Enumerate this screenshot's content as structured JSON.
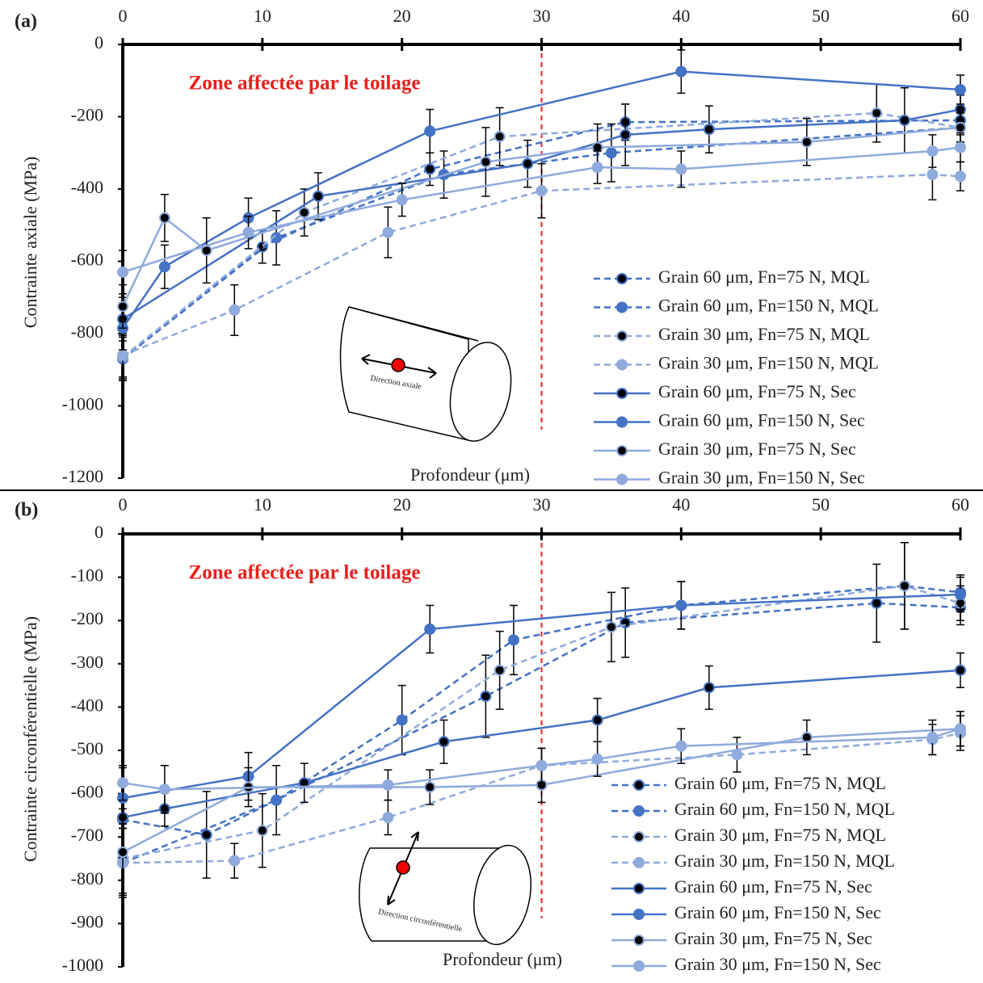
{
  "chart_data": [
    {
      "type": "line",
      "panel_label": "(a)",
      "annotation": "Zone affectée par le toilage",
      "annotation_color": "#e8201c",
      "zone_x": 30,
      "xlabel": "Profondeur (μm)",
      "ylabel": "Contrainte axiale (MPa)",
      "inset_label": "Direction axiale",
      "xlim": [
        0,
        60
      ],
      "xticks": [
        0,
        10,
        20,
        30,
        40,
        50,
        60
      ],
      "ylim": [
        -1200,
        0
      ],
      "yticks": [
        -1200,
        -1000,
        -800,
        -600,
        -400,
        -200,
        0
      ],
      "legend": "lower right",
      "series": [
        {
          "name": "Grain 60 μm, Fn=75 N, MQL",
          "color": "#4472c4",
          "marker_color": "#000000",
          "dashed": true,
          "x": [
            0,
            10,
            22,
            36,
            60
          ],
          "values": [
            -870,
            -560,
            -345,
            -215,
            -210
          ],
          "errors": [
            60,
            45,
            45,
            50,
            40
          ]
        },
        {
          "name": "Grain 60 μm, Fn=150 N, MQL",
          "color": "#4472c4",
          "marker_color": "#4472c4",
          "dashed": true,
          "x": [
            0,
            11,
            23,
            35,
            60
          ],
          "values": [
            -870,
            -535,
            -360,
            -300,
            -230
          ],
          "errors": [
            60,
            75,
            65,
            80,
            40
          ]
        },
        {
          "name": "Grain 30 μm, Fn=75 N, MQL",
          "color": "#8faadc",
          "marker_color": "#000000",
          "dashed": true,
          "x": [
            0,
            13,
            27,
            54,
            60
          ],
          "values": [
            -865,
            -465,
            -255,
            -190,
            -230
          ],
          "errors": [
            60,
            65,
            80,
            80,
            40
          ]
        },
        {
          "name": "Grain 30 μm, Fn=150 N, MQL",
          "color": "#8faadc",
          "marker_color": "#8faadc",
          "dashed": true,
          "x": [
            0,
            8,
            19,
            30,
            58,
            60
          ],
          "values": [
            -860,
            -735,
            -520,
            -405,
            -360,
            -365
          ],
          "errors": [
            60,
            70,
            70,
            75,
            70,
            40
          ]
        },
        {
          "name": "Grain 60 μm, Fn=75 N, Sec",
          "color": "#4472c4",
          "marker_color": "#000000",
          "dashed": false,
          "x": [
            0,
            14,
            29,
            36,
            42,
            56,
            60
          ],
          "values": [
            -760,
            -420,
            -330,
            -250,
            -235,
            -210,
            -180
          ],
          "errors": [
            60,
            65,
            65,
            85,
            65,
            90,
            40
          ]
        },
        {
          "name": "Grain 60 μm, Fn=150 N, Sec",
          "color": "#4472c4",
          "marker_color": "#4472c4",
          "dashed": false,
          "x": [
            0,
            3,
            9,
            22,
            40,
            60
          ],
          "values": [
            -785,
            -615,
            -480,
            -240,
            -75,
            -125
          ],
          "errors": [
            60,
            60,
            55,
            60,
            60,
            40
          ]
        },
        {
          "name": "Grain 30 μm, Fn=75 N, Sec",
          "color": "#8faadc",
          "marker_color": "#000000",
          "dashed": false,
          "x": [
            0,
            3,
            6,
            26,
            34,
            49,
            60
          ],
          "values": [
            -725,
            -480,
            -570,
            -325,
            -285,
            -270,
            -230
          ],
          "errors": [
            60,
            65,
            90,
            95,
            65,
            65,
            40
          ]
        },
        {
          "name": "Grain 30 μm, Fn=150 N, Sec",
          "color": "#8faadc",
          "marker_color": "#8faadc",
          "dashed": false,
          "x": [
            0,
            9,
            20,
            34,
            40,
            58,
            60
          ],
          "values": [
            -630,
            -520,
            -430,
            -340,
            -345,
            -295,
            -285
          ],
          "errors": [
            60,
            45,
            45,
            45,
            50,
            45,
            40
          ]
        }
      ]
    },
    {
      "type": "line",
      "panel_label": "(b)",
      "annotation": "Zone affectée par le toilage",
      "annotation_color": "#e8201c",
      "zone_x": 30,
      "xlabel": "Profondeur (μm)",
      "ylabel": "Contrainte  circonférentielle (MPa)",
      "inset_label": "Direction circonférentielle",
      "xlim": [
        0,
        60
      ],
      "xticks": [
        0,
        10,
        20,
        30,
        40,
        50,
        60
      ],
      "ylim": [
        -1000,
        0
      ],
      "yticks": [
        -1000,
        -900,
        -800,
        -700,
        -600,
        -500,
        -400,
        -300,
        -200,
        -100,
        0
      ],
      "legend": "lower right",
      "series": [
        {
          "name": "Grain 60 μm, Fn=75 N, MQL",
          "color": "#4472c4",
          "marker_color": "#000000",
          "dashed": true,
          "x": [
            0,
            6,
            26,
            36,
            54,
            60
          ],
          "values": [
            -660,
            -695,
            -375,
            -205,
            -160,
            -170
          ],
          "errors": [
            80,
            100,
            95,
            80,
            90,
            40
          ]
        },
        {
          "name": "Grain 60 μm, Fn=150 N, MQL",
          "color": "#4472c4",
          "marker_color": "#4472c4",
          "dashed": true,
          "x": [
            0,
            11,
            20,
            28,
            40,
            56,
            60
          ],
          "values": [
            -760,
            -615,
            -430,
            -245,
            -165,
            -120,
            -135
          ],
          "errors": [
            80,
            80,
            80,
            80,
            55,
            100,
            40
          ]
        },
        {
          "name": "Grain 30 μm, Fn=75 N, MQL",
          "color": "#8faadc",
          "marker_color": "#000000",
          "dashed": true,
          "x": [
            0,
            10,
            27,
            35,
            56,
            60
          ],
          "values": [
            -750,
            -685,
            -315,
            -215,
            -120,
            -160
          ],
          "errors": [
            80,
            85,
            90,
            80,
            100,
            40
          ]
        },
        {
          "name": "Grain 30 μm, Fn=150 N, MQL",
          "color": "#8faadc",
          "marker_color": "#8faadc",
          "dashed": true,
          "x": [
            0,
            8,
            19,
            30,
            44,
            58,
            60
          ],
          "values": [
            -760,
            -755,
            -655,
            -535,
            -510,
            -475,
            -460
          ],
          "errors": [
            80,
            40,
            40,
            40,
            40,
            35,
            40
          ]
        },
        {
          "name": "Grain 60 μm, Fn=75 N, Sec",
          "color": "#4472c4",
          "marker_color": "#000000",
          "dashed": false,
          "x": [
            0,
            3,
            13,
            23,
            34,
            42,
            60
          ],
          "values": [
            -655,
            -635,
            -575,
            -480,
            -430,
            -355,
            -315
          ],
          "errors": [
            80,
            40,
            45,
            50,
            50,
            50,
            40
          ]
        },
        {
          "name": "Grain 60 μm, Fn=150 N, Sec",
          "color": "#4472c4",
          "marker_color": "#4472c4",
          "dashed": false,
          "x": [
            0,
            9,
            22,
            40,
            60
          ],
          "values": [
            -610,
            -560,
            -220,
            -165,
            -140
          ],
          "errors": [
            70,
            55,
            55,
            55,
            40
          ]
        },
        {
          "name": "Grain 30 μm, Fn=75 N, Sec",
          "color": "#8faadc",
          "marker_color": "#000000",
          "dashed": false,
          "x": [
            0,
            9,
            22,
            30,
            49,
            60
          ],
          "values": [
            -735,
            -585,
            -585,
            -580,
            -470,
            -450
          ],
          "errors": [
            100,
            45,
            40,
            40,
            40,
            40
          ]
        },
        {
          "name": "Grain 30 μm, Fn=150 N, Sec",
          "color": "#8faadc",
          "marker_color": "#8faadc",
          "dashed": false,
          "x": [
            0,
            3,
            19,
            30,
            34,
            40,
            58,
            60
          ],
          "values": [
            -575,
            -590,
            -580,
            -535,
            -520,
            -490,
            -470,
            -450
          ],
          "errors": [
            40,
            55,
            35,
            40,
            40,
            40,
            40,
            40
          ]
        }
      ]
    }
  ]
}
